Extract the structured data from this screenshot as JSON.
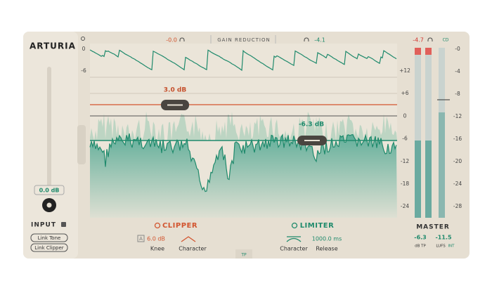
{
  "header": {
    "brand": "ARTURIA",
    "gr_left": "-0.0",
    "gr_title": "GAIN REDUCTION",
    "gr_right": "-4.1"
  },
  "gain_reduction_scale": [
    "0",
    "-6"
  ],
  "display": {
    "clipper_threshold": "3.0 dB",
    "limiter_threshold": "-6.3 dB",
    "scale": [
      "+12",
      "+6",
      "0",
      "-6",
      "-12",
      "-18",
      "-24"
    ]
  },
  "input": {
    "value": "0.0 dB",
    "label": "INPUT",
    "buttons": [
      "Link Tone",
      "Link Clipper"
    ]
  },
  "clipper": {
    "title": "CLIPPER",
    "auto": "A",
    "knee_value": "6.0 dB",
    "knee": "Knee",
    "character": "Character"
  },
  "limiter": {
    "title": "LIMITER",
    "character": "Character",
    "release_value": "1000.0 ms",
    "release": "Release"
  },
  "tp_tab": "TP",
  "master": {
    "peak": "-4.7",
    "mode": "CD",
    "scale": [
      "-0",
      "-4",
      "-8",
      "-12",
      "-16",
      "-20",
      "-24",
      "-28"
    ],
    "label": "MASTER",
    "true_peak": "-6.3",
    "true_peak_unit": "dB TP",
    "lufs": "-11.5",
    "lufs_unit": "LUFS",
    "lufs_mode": "INT"
  }
}
